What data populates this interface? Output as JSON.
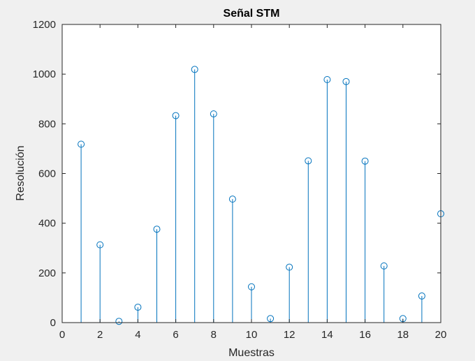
{
  "chart_data": {
    "type": "stem",
    "title": "Señal STM",
    "xlabel": "Muestras",
    "ylabel": "Resolución",
    "xlim": [
      0,
      20
    ],
    "ylim": [
      0,
      1200
    ],
    "xticks": [
      0,
      2,
      4,
      6,
      8,
      10,
      12,
      14,
      16,
      18,
      20
    ],
    "yticks": [
      0,
      200,
      400,
      600,
      800,
      1000,
      1200
    ],
    "grid": false,
    "legend": "none",
    "marker": "circle-open",
    "colors": {
      "series": "#0072bd",
      "axes": "#262626",
      "background": "#ffffff",
      "figure": "#f0f0f0"
    },
    "x": [
      1,
      2,
      3,
      4,
      5,
      6,
      7,
      8,
      9,
      10,
      11,
      12,
      13,
      14,
      15,
      16,
      17,
      18,
      19,
      20
    ],
    "values": [
      718,
      313,
      5,
      62,
      376,
      833,
      1019,
      840,
      497,
      144,
      16,
      223,
      651,
      978,
      970,
      650,
      228,
      16,
      107,
      438
    ]
  }
}
